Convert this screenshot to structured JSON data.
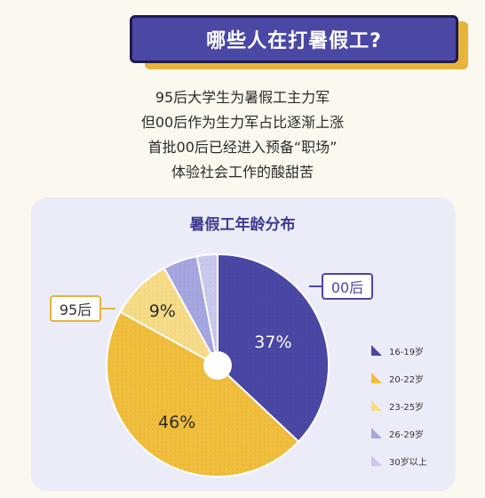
{
  "banner": {
    "title": "哪些人在打暑假工?"
  },
  "description": [
    "95后大学生为暑假工主力军",
    "但00后作为生力军占比逐渐上涨",
    "首批00后已经进入预备“职场”",
    "体验社会工作的酸甜苦"
  ],
  "callouts": {
    "gen00": "00后",
    "gen95": "95后"
  },
  "chart_data": {
    "type": "pie",
    "title": "暑假工年龄分布",
    "categories": [
      "16-19岁",
      "20-22岁",
      "23-25岁",
      "26-29岁",
      "30岁以上"
    ],
    "values": [
      37,
      46,
      9,
      5,
      3
    ],
    "value_labels": [
      "37%",
      "46%",
      "9%",
      "",
      ""
    ],
    "colors": [
      "#4a47a5",
      "#f0be3c",
      "#f7dc88",
      "#a6a6e0",
      "#c9c9ef"
    ],
    "legend_position": "right"
  }
}
